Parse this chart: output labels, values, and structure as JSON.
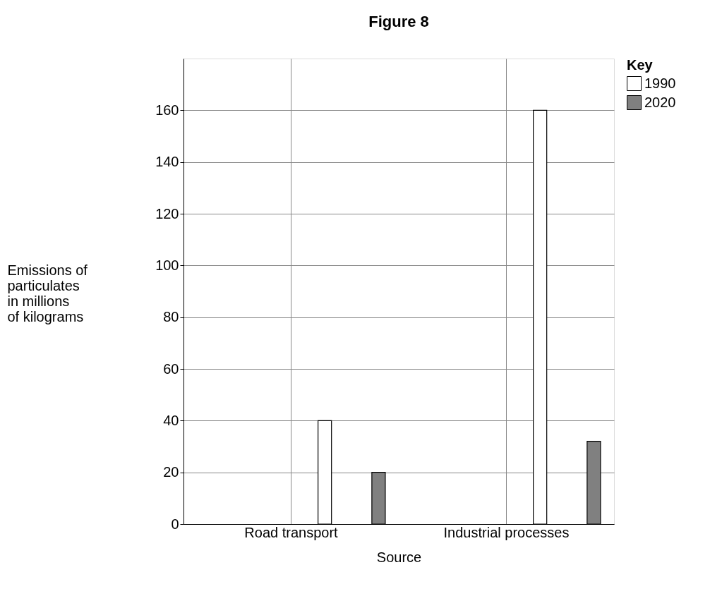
{
  "chart_data": {
    "type": "bar",
    "title": "Figure 8",
    "xlabel": "Source",
    "ylabel": "Emissions of\nparticulates\nin millions\nof kilograms",
    "legend_title": "Key",
    "categories": [
      "Road transport",
      "Industrial processes"
    ],
    "series": [
      {
        "name": "1990",
        "color": "#ffffff",
        "values": [
          40,
          160
        ]
      },
      {
        "name": "2020",
        "color": "#808080",
        "values": [
          20,
          32
        ]
      }
    ],
    "ylim": [
      0,
      180
    ],
    "yticks": [
      0,
      20,
      40,
      60,
      80,
      100,
      120,
      140,
      160
    ],
    "grid": true,
    "legend": "top right"
  }
}
